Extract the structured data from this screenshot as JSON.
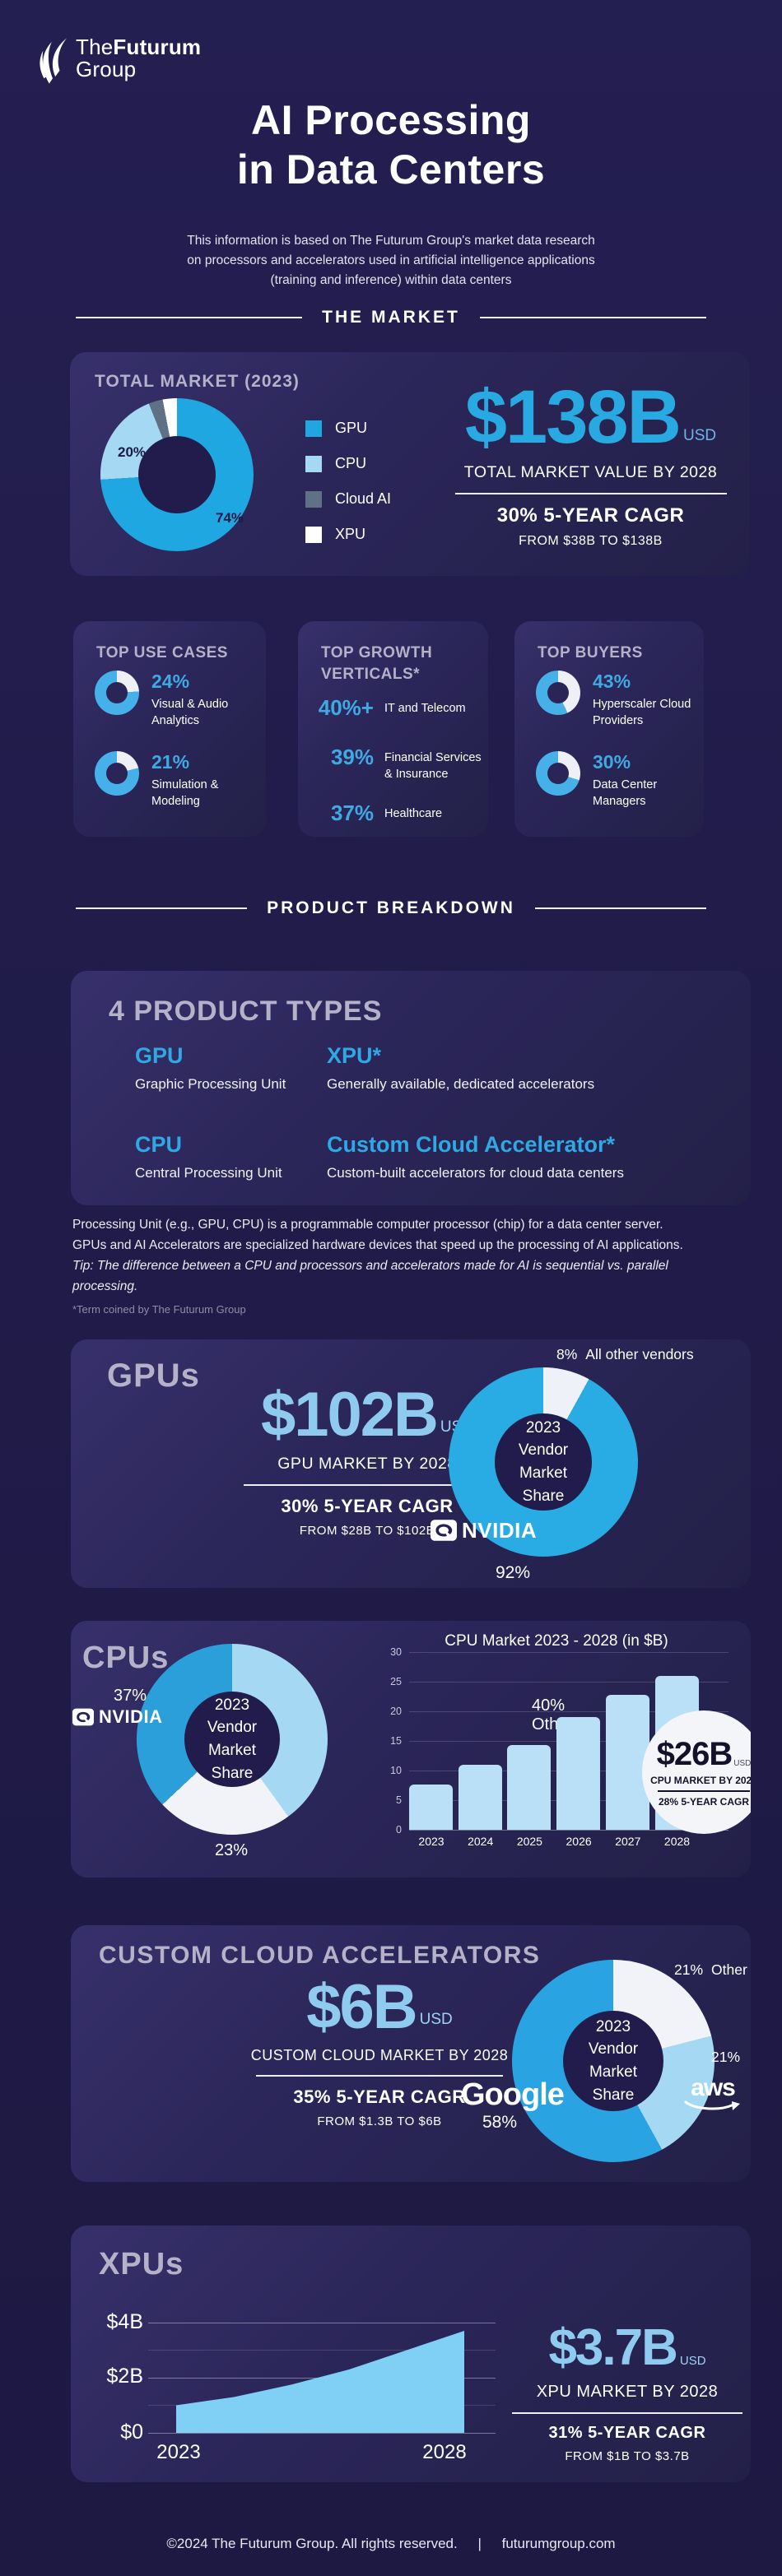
{
  "colors": {
    "accent_blue": "#29a9e1",
    "light_blue": "#a5d8f3",
    "sky_value": "#8ecbef",
    "bars": "#b9e0f6",
    "area": "#7fd0f4",
    "slate": "#5f7285",
    "ring_blue": "#45b1e8",
    "background": "#201b48"
  },
  "header": {
    "logo_the": "The",
    "logo_futurum": "Futurum",
    "logo_group": "Group",
    "title_line1": "AI Processing",
    "title_line2": "in Data Centers",
    "subtitle_line1": "This information is based on The Futurum Group's market data research",
    "subtitle_line2": "on processors and accelerators used in artificial intelligence applications",
    "subtitle_line3": "(training and inference) within data centers"
  },
  "dividers": {
    "market": "THE MARKET",
    "product": "PRODUCT BREAKDOWN"
  },
  "total_market": {
    "title": "TOTAL MARKET (2023)",
    "donut_style": "background:conic-gradient(#1fa7e2 0deg 266.4deg, #a5d8f3 266.4deg 338.4deg, #5f7285 338.4deg 349.2deg, #ffffff 349.2deg 360deg)",
    "slice_label_cpu": "20%",
    "slice_label_gpu": "74%",
    "legend": [
      {
        "label": "GPU",
        "swatch": "background:#1fa7e2"
      },
      {
        "label": "CPU",
        "swatch": "background:#a5d8f3"
      },
      {
        "label": "Cloud AI",
        "swatch": "background:#5f7285"
      },
      {
        "label": "XPU",
        "swatch": "background:#ffffff"
      }
    ],
    "value": "$138B",
    "unit": "USD",
    "caption": "TOTAL MARKET VALUE BY 2028",
    "cagr": "30% 5-YEAR CAGR",
    "cagr_range": "FROM $38B TO $138B"
  },
  "use_cases": {
    "title": "TOP USE CASES",
    "items": [
      {
        "pct": "24%",
        "label": "Visual & Audio Analytics",
        "ring": "background:conic-gradient(#eef0f6 0 24%, #45b1e8 24% 100%)"
      },
      {
        "pct": "21%",
        "label": "Simulation & Modeling",
        "ring": "background:conic-gradient(#eef0f6 0 21%, #45b1e8 21% 100%)"
      }
    ]
  },
  "growth": {
    "title_line1": "TOP GROWTH",
    "title_line2": "VERTICALS*",
    "items": [
      {
        "pct": "40%+",
        "label": "IT and Telecom"
      },
      {
        "pct": "39%",
        "label": "Financial Services & Insurance"
      },
      {
        "pct": "37%",
        "label": "Healthcare"
      }
    ]
  },
  "buyers": {
    "title": "TOP BUYERS",
    "items": [
      {
        "pct": "43%",
        "label": "Hyperscaler Cloud Providers",
        "ring": "background:conic-gradient(#eef0f6 0 43%, #45b1e8 43% 100%)"
      },
      {
        "pct": "30%",
        "label": "Data Center Managers",
        "ring": "background:conic-gradient(#eef0f6 0 30%, #45b1e8 30% 100%)"
      }
    ]
  },
  "product_types": {
    "title": "4 PRODUCT TYPES",
    "items": [
      {
        "name": "GPU",
        "desc": "Graphic Processing Unit"
      },
      {
        "name": "XPU*",
        "desc": "Generally available, dedicated accelerators"
      },
      {
        "name": "CPU",
        "desc": "Central Processing Unit"
      },
      {
        "name": "Custom Cloud Accelerator*",
        "desc": "Custom-built accelerators for cloud data centers"
      }
    ]
  },
  "notes": {
    "line1": "Processing Unit (e.g., GPU, CPU) is a programmable computer processor (chip) for a data center server.",
    "line2": "GPUs and AI Accelerators are specialized hardware devices that speed up the processing of AI applications.",
    "line3": "Tip: The difference between a CPU and processors and accelerators made for AI is sequential vs. parallel processing.",
    "line4": "*Term coined by The Futurum Group"
  },
  "gpus": {
    "title": "GPUs",
    "value": "$102B",
    "unit": "USD",
    "caption": "GPU MARKET BY 2028",
    "cagr": "30% 5-YEAR CAGR",
    "cagr_range": "FROM $28B TO $102B",
    "donut_style": "background:conic-gradient(#eef1f7 0deg 28.8deg, #29abe3 28.8deg 360deg)",
    "center": "2023 Vendor Market Share",
    "callout_pct": "8%",
    "callout_label": "All other vendors",
    "share_pct": "92%",
    "vendor": "NVIDIA"
  },
  "cpus": {
    "title": "CPUs",
    "donut_style": "background:conic-gradient(#a5d8f3 0deg 144deg, #f2f3f8 144deg 226.8deg, #2b9fd9 226.8deg 360deg)",
    "center": "2023 Vendor Market Share",
    "nvidia_pct": "37%",
    "vendor": "NVIDIA",
    "other_pct": "40%",
    "other_label": "Other",
    "white_pct": "23%",
    "chart_title": "CPU Market 2023 - 2028 (in $B)",
    "y_ticks": [
      "30",
      "25",
      "20",
      "15",
      "10",
      "5",
      "0"
    ],
    "first_bar_label": "$7.7B",
    "last_bar_label": "$26B",
    "badge": {
      "value": "$26B",
      "unit": "USD",
      "caption": "CPU MARKET BY 2028",
      "cagr": "28% 5-YEAR CAGR"
    }
  },
  "custom_cloud": {
    "title": "CUSTOM CLOUD ACCELERATORS",
    "value": "$6B",
    "unit": "USD",
    "caption": "CUSTOM CLOUD MARKET BY 2028",
    "cagr": "35% 5-YEAR CAGR",
    "cagr_range": "FROM $1.3B TO $6B",
    "donut_style": "background:conic-gradient(#f2f3f8 0deg 75.6deg, #a5d8f3 75.6deg 151.2deg, #29a3e2 151.2deg 360deg)",
    "center": "2023 Vendor Market Share",
    "other_pct": "21%",
    "other_label": "Other",
    "aws_pct": "21%",
    "aws": "aws",
    "google": "Google",
    "google_pct": "58%"
  },
  "xpus": {
    "title": "XPUs",
    "value": "$3.7B",
    "unit": "USD",
    "caption": "XPU MARKET BY 2028",
    "cagr": "31% 5-YEAR CAGR",
    "cagr_range": "FROM $1B TO $3.7B",
    "y_labels": [
      "$4B",
      "$2B",
      "$0"
    ],
    "x_labels": [
      "2023",
      "2028"
    ]
  },
  "footer": {
    "copyright": "©2024 The Futurum Group. All rights reserved.",
    "separator": "|",
    "site": "futurumgroup.com"
  },
  "chart_data": [
    {
      "type": "pie",
      "title": "TOTAL MARKET (2023)",
      "labels": [
        "GPU",
        "CPU",
        "Cloud AI",
        "XPU"
      ],
      "values": [
        74,
        20,
        3,
        3
      ],
      "unit": "%",
      "colors": [
        "#1fa7e2",
        "#a5d8f3",
        "#5f7285",
        "#ffffff"
      ]
    },
    {
      "type": "pie",
      "title": "GPU 2023 Vendor Market Share",
      "labels": [
        "NVIDIA",
        "All other vendors"
      ],
      "values": [
        92,
        8
      ],
      "unit": "%",
      "colors": [
        "#29abe3",
        "#eef1f7"
      ]
    },
    {
      "type": "pie",
      "title": "CPU 2023 Vendor Market Share",
      "labels": [
        "Other",
        "Unlabeled",
        "NVIDIA"
      ],
      "values": [
        40,
        23,
        37
      ],
      "unit": "%",
      "colors": [
        "#a5d8f3",
        "#f2f3f8",
        "#2b9fd9"
      ]
    },
    {
      "type": "bar",
      "title": "CPU Market 2023 - 2028 (in $B)",
      "categories": [
        "2023",
        "2024",
        "2025",
        "2026",
        "2027",
        "2028"
      ],
      "values": [
        7.7,
        11,
        14.3,
        19,
        22.8,
        26
      ],
      "ylabel": "$B",
      "ylim": [
        0,
        30
      ],
      "yticks": [
        0,
        5,
        10,
        15,
        20,
        25,
        30
      ],
      "bar_color": "#b9e0f6"
    },
    {
      "type": "pie",
      "title": "Custom Cloud Accelerators 2023 Vendor Market Share",
      "labels": [
        "Google",
        "aws",
        "Other"
      ],
      "values": [
        58,
        21,
        21
      ],
      "unit": "%",
      "colors": [
        "#29a3e2",
        "#a5d8f3",
        "#f2f3f8"
      ]
    },
    {
      "type": "area",
      "title": "XPU Market 2023 - 2028",
      "x": [
        2023,
        2024,
        2025,
        2026,
        2027,
        2028
      ],
      "values": [
        1.0,
        1.3,
        1.75,
        2.3,
        3.0,
        3.7
      ],
      "ylim": [
        0,
        4
      ],
      "ylabels": [
        "$0",
        "$2B",
        "$4B"
      ],
      "area_color": "#7fd0f4"
    }
  ]
}
